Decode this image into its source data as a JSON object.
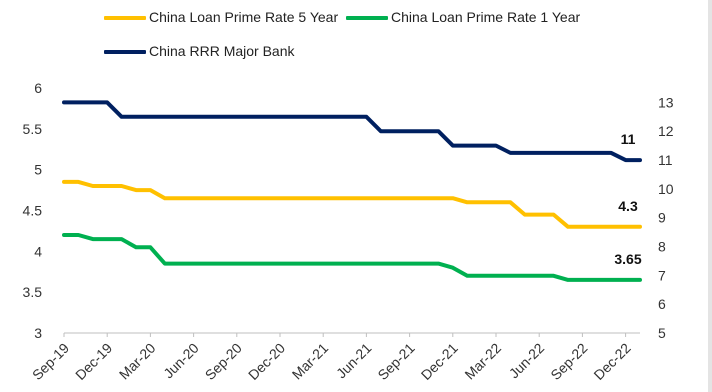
{
  "chart_data": {
    "type": "line",
    "categories": [
      "Sep-19",
      "Dec-19",
      "Mar-20",
      "Jun-20",
      "Sep-20",
      "Dec-20",
      "Mar-21",
      "Jun-21",
      "Sep-21",
      "Dec-21",
      "Mar-22",
      "Jun-22",
      "Sep-22",
      "Dec-22"
    ],
    "x": [
      "Sep-19",
      "Oct-19",
      "Nov-19",
      "Dec-19",
      "Jan-20",
      "Feb-20",
      "Mar-20",
      "Apr-20",
      "May-20",
      "Jun-20",
      "Jul-20",
      "Aug-20",
      "Sep-20",
      "Oct-20",
      "Nov-20",
      "Dec-20",
      "Jan-21",
      "Feb-21",
      "Mar-21",
      "Apr-21",
      "May-21",
      "Jun-21",
      "Jul-21",
      "Aug-21",
      "Sep-21",
      "Oct-21",
      "Nov-21",
      "Dec-21",
      "Jan-22",
      "Feb-22",
      "Mar-22",
      "Apr-22",
      "May-22",
      "Jun-22",
      "Jul-22",
      "Aug-22",
      "Sep-22",
      "Oct-22",
      "Nov-22",
      "Dec-22",
      "Jan-23"
    ],
    "series": [
      {
        "name": "China Loan Prime Rate 5 Year",
        "color": "#FFC000",
        "axis": "left",
        "values": [
          4.85,
          4.85,
          4.8,
          4.8,
          4.8,
          4.75,
          4.75,
          4.65,
          4.65,
          4.65,
          4.65,
          4.65,
          4.65,
          4.65,
          4.65,
          4.65,
          4.65,
          4.65,
          4.65,
          4.65,
          4.65,
          4.65,
          4.65,
          4.65,
          4.65,
          4.65,
          4.65,
          4.65,
          4.6,
          4.6,
          4.6,
          4.6,
          4.45,
          4.45,
          4.45,
          4.3,
          4.3,
          4.3,
          4.3,
          4.3,
          4.3
        ],
        "end_label": "4.3"
      },
      {
        "name": "China Loan Prime Rate 1 Year",
        "color": "#00B050",
        "axis": "left",
        "values": [
          4.2,
          4.2,
          4.15,
          4.15,
          4.15,
          4.05,
          4.05,
          3.85,
          3.85,
          3.85,
          3.85,
          3.85,
          3.85,
          3.85,
          3.85,
          3.85,
          3.85,
          3.85,
          3.85,
          3.85,
          3.85,
          3.85,
          3.85,
          3.85,
          3.85,
          3.85,
          3.85,
          3.8,
          3.7,
          3.7,
          3.7,
          3.7,
          3.7,
          3.7,
          3.7,
          3.65,
          3.65,
          3.65,
          3.65,
          3.65,
          3.65
        ],
        "end_label": "3.65"
      },
      {
        "name": "China RRR Major Bank",
        "color": "#002060",
        "axis": "right",
        "values": [
          13,
          13,
          13,
          13,
          12.5,
          12.5,
          12.5,
          12.5,
          12.5,
          12.5,
          12.5,
          12.5,
          12.5,
          12.5,
          12.5,
          12.5,
          12.5,
          12.5,
          12.5,
          12.5,
          12.5,
          12.5,
          12,
          12,
          12,
          12,
          12,
          11.5,
          11.5,
          11.5,
          11.5,
          11.25,
          11.25,
          11.25,
          11.25,
          11.25,
          11.25,
          11.25,
          11.25,
          11,
          11
        ],
        "end_label": "11"
      }
    ],
    "y_left": {
      "ticks": [
        "3",
        "3.5",
        "4",
        "4.5",
        "5",
        "5.5",
        "6"
      ],
      "ylim": [
        3,
        6
      ]
    },
    "y_right": {
      "ticks": [
        "5",
        "6",
        "7",
        "8",
        "9",
        "10",
        "11",
        "12",
        "13"
      ],
      "ylim": [
        5,
        13.5
      ]
    },
    "grid": false,
    "legend_position": "top"
  },
  "legend": {
    "item1": "China Loan Prime Rate 5 Year",
    "item2": "China Loan Prime Rate 1 Year",
    "item3": "China RRR Major Bank"
  }
}
